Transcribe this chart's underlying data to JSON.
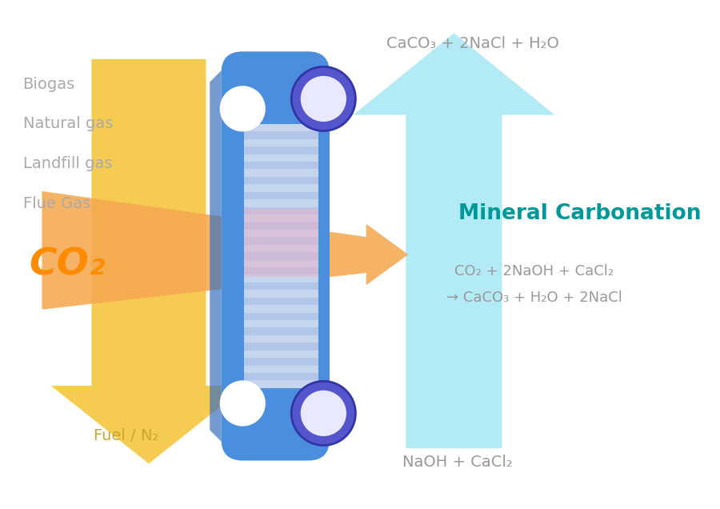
{
  "bg_color": "#ffffff",
  "gas_labels": [
    "Biogas",
    "Natural gas",
    "Landfill gas",
    "Flue Gas"
  ],
  "gas_label_color": "#aaaaaa",
  "co2_label": "CO₂",
  "co2_color": "#FF8C00",
  "fuel_label": "Fuel / N₂",
  "fuel_color": "#c8a830",
  "yellow_arrow_color": "#F5C842",
  "orange_arrow_color": "#F5A850",
  "cyan_arrow_color": "#A8E8F5",
  "top_formula": "CaCO₃ + 2NaCl + H₂O",
  "bottom_formula": "NaOH + CaCl₂",
  "formula_color": "#999999",
  "mineral_carbonation_label": "Mineral Carbonation",
  "mineral_carbonation_color": "#009999",
  "reaction_line1": "CO₂ + 2NaOH + CaCl₂",
  "reaction_line2": "→ CaCO₃ + H₂O + 2NaCl",
  "reaction_color": "#999999",
  "plate_body_color": "#4A8FDD",
  "plate_shadow_color": "#3A6FBB",
  "plate_ring_color": "#5555CC",
  "plate_ring_edge": "#3333AA",
  "membrane_color": "#C5D5EE",
  "membrane_stripe": "#B0C5E8"
}
